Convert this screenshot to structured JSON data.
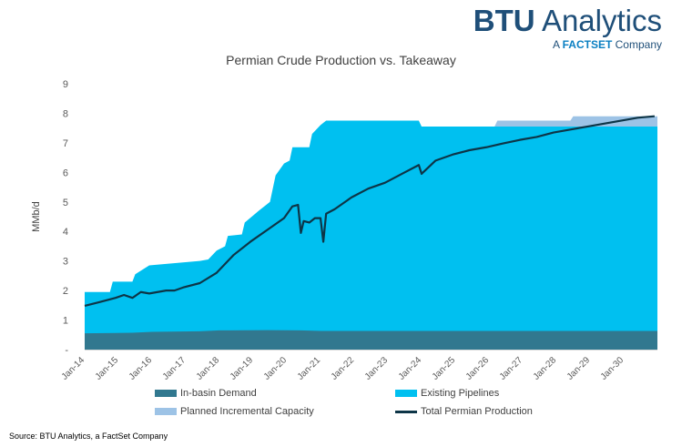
{
  "brand": {
    "name_bold": "BTU",
    "name_rest": " Analytics",
    "tag_prefix": "A ",
    "tag_factset": "FACTSET",
    "tag_suffix": " Company"
  },
  "source": "Source: BTU Analytics, a FactSet Company",
  "colors": {
    "in_basin": "#31788f",
    "existing": "#00c0f0",
    "planned": "#9dc3e6",
    "production": "#0d3547",
    "axis_text": "#595959"
  },
  "chart_data": {
    "type": "area",
    "title": "Permian Crude Production vs. Takeaway",
    "xlabel": "",
    "ylabel": "MMb/d",
    "ylim": [
      0,
      9
    ],
    "y_ticks": [
      "-",
      "1",
      "2",
      "3",
      "4",
      "5",
      "6",
      "7",
      "8",
      "9"
    ],
    "x_ticks": [
      "Jan-14",
      "Jan-15",
      "Jan-16",
      "Jan-17",
      "Jan-18",
      "Jan-19",
      "Jan-20",
      "Jan-21",
      "Jan-22",
      "Jan-23",
      "Jan-24",
      "Jan-25",
      "Jan-26",
      "Jan-27",
      "Jan-28",
      "Jan-29",
      "Jan-30"
    ],
    "x_range": [
      "2014-01",
      "2030-12"
    ],
    "grid": false,
    "legend_position": "bottom",
    "legend": [
      "In-basin Demand",
      "Existing Pipelines",
      "Planned Incremental Capacity",
      "Total Permian Production"
    ],
    "series": [
      {
        "name": "In-basin Demand",
        "kind": "area",
        "points": [
          [
            "2014-01",
            0.55
          ],
          [
            "2015-06",
            0.57
          ],
          [
            "2016-01",
            0.6
          ],
          [
            "2017-06",
            0.62
          ],
          [
            "2018-01",
            0.65
          ],
          [
            "2019-06",
            0.66
          ],
          [
            "2020-06",
            0.65
          ],
          [
            "2021-01",
            0.63
          ],
          [
            "2030-12",
            0.63
          ]
        ]
      },
      {
        "name": "Existing Pipelines",
        "kind": "area",
        "points": [
          [
            "2014-01",
            1.95
          ],
          [
            "2014-10",
            1.95
          ],
          [
            "2014-11",
            2.3
          ],
          [
            "2015-06",
            2.3
          ],
          [
            "2015-07",
            2.55
          ],
          [
            "2015-12",
            2.85
          ],
          [
            "2016-06",
            2.9
          ],
          [
            "2016-12",
            2.95
          ],
          [
            "2017-06",
            3.0
          ],
          [
            "2017-09",
            3.05
          ],
          [
            "2017-12",
            3.35
          ],
          [
            "2018-03",
            3.5
          ],
          [
            "2018-04",
            3.85
          ],
          [
            "2018-09",
            3.9
          ],
          [
            "2018-10",
            4.3
          ],
          [
            "2019-03",
            4.7
          ],
          [
            "2019-07",
            5.0
          ],
          [
            "2019-09",
            5.9
          ],
          [
            "2019-12",
            6.3
          ],
          [
            "2020-02",
            6.4
          ],
          [
            "2020-03",
            6.85
          ],
          [
            "2020-09",
            6.85
          ],
          [
            "2020-10",
            7.3
          ],
          [
            "2020-12",
            7.5
          ],
          [
            "2021-01",
            7.6
          ],
          [
            "2021-03",
            7.75
          ],
          [
            "2023-12",
            7.75
          ],
          [
            "2024-01",
            7.55
          ],
          [
            "2030-12",
            7.55
          ]
        ]
      },
      {
        "name": "Planned Incremental Capacity",
        "kind": "area",
        "points": [
          [
            "2026-03",
            7.55
          ],
          [
            "2026-04",
            7.75
          ],
          [
            "2028-06",
            7.75
          ],
          [
            "2028-07",
            7.9
          ],
          [
            "2030-12",
            7.9
          ]
        ]
      },
      {
        "name": "Total Permian Production",
        "kind": "line",
        "points": [
          [
            "2014-01",
            1.48
          ],
          [
            "2014-06",
            1.6
          ],
          [
            "2014-12",
            1.75
          ],
          [
            "2015-03",
            1.85
          ],
          [
            "2015-06",
            1.75
          ],
          [
            "2015-09",
            1.95
          ],
          [
            "2015-12",
            1.9
          ],
          [
            "2016-03",
            1.95
          ],
          [
            "2016-06",
            2.0
          ],
          [
            "2016-09",
            2.0
          ],
          [
            "2016-12",
            2.1
          ],
          [
            "2017-06",
            2.25
          ],
          [
            "2017-12",
            2.6
          ],
          [
            "2018-06",
            3.2
          ],
          [
            "2018-12",
            3.65
          ],
          [
            "2019-06",
            4.05
          ],
          [
            "2019-12",
            4.45
          ],
          [
            "2020-03",
            4.85
          ],
          [
            "2020-05",
            4.9
          ],
          [
            "2020-06",
            3.95
          ],
          [
            "2020-07",
            4.35
          ],
          [
            "2020-09",
            4.3
          ],
          [
            "2020-11",
            4.45
          ],
          [
            "2021-01",
            4.45
          ],
          [
            "2021-02",
            3.65
          ],
          [
            "2021-03",
            4.6
          ],
          [
            "2021-06",
            4.75
          ],
          [
            "2021-12",
            5.15
          ],
          [
            "2022-06",
            5.45
          ],
          [
            "2022-12",
            5.65
          ],
          [
            "2023-06",
            5.95
          ],
          [
            "2023-12",
            6.25
          ],
          [
            "2024-01",
            5.95
          ],
          [
            "2024-06",
            6.4
          ],
          [
            "2024-12",
            6.6
          ],
          [
            "2025-06",
            6.75
          ],
          [
            "2025-12",
            6.85
          ],
          [
            "2026-06",
            6.98
          ],
          [
            "2026-12",
            7.1
          ],
          [
            "2027-06",
            7.2
          ],
          [
            "2027-12",
            7.35
          ],
          [
            "2028-06",
            7.45
          ],
          [
            "2028-12",
            7.55
          ],
          [
            "2029-06",
            7.65
          ],
          [
            "2029-12",
            7.75
          ],
          [
            "2030-06",
            7.85
          ],
          [
            "2030-12",
            7.9
          ]
        ]
      }
    ]
  }
}
